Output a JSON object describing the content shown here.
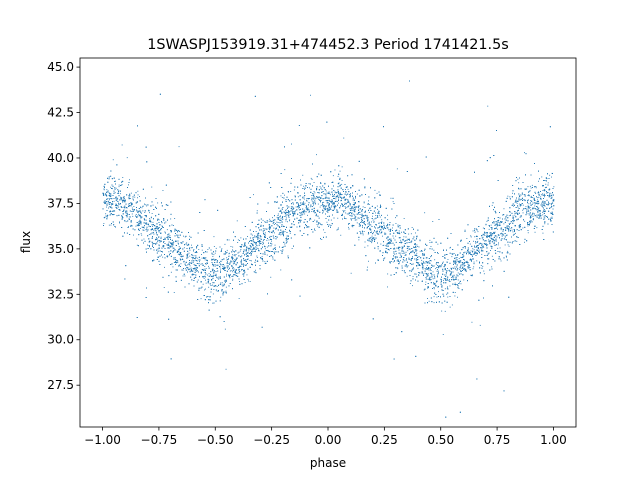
{
  "chart_data": {
    "type": "scatter",
    "title": "1SWASPJ153919.31+474452.3 Period 1741421.5s",
    "xlabel": "phase",
    "ylabel": "flux",
    "xlim": [
      -1.1,
      1.1
    ],
    "ylim": [
      25.2,
      45.5
    ],
    "xticks": [
      -1.0,
      -0.75,
      -0.5,
      -0.25,
      0.0,
      0.25,
      0.5,
      0.75,
      1.0
    ],
    "xtick_labels": [
      "−1.00",
      "−0.75",
      "−0.50",
      "−0.25",
      "0.00",
      "0.25",
      "0.50",
      "0.75",
      "1.00"
    ],
    "yticks": [
      27.5,
      30.0,
      32.5,
      35.0,
      37.5,
      40.0,
      42.5,
      45.0
    ],
    "ytick_labels": [
      "27.5",
      "30.0",
      "32.5",
      "35.0",
      "37.5",
      "40.0",
      "42.5",
      "45.0"
    ],
    "grid": false,
    "marker_color": "#1f77b4",
    "series": [
      {
        "values_description_free": true,
        "x": [
          -1.0,
          -0.95,
          -0.9,
          -0.85,
          -0.8,
          -0.75,
          -0.7,
          -0.65,
          -0.6,
          -0.55,
          -0.5,
          -0.45,
          -0.4,
          -0.35,
          -0.3,
          -0.25,
          -0.2,
          -0.15,
          -0.1,
          -0.05,
          0.0,
          0.05,
          0.1,
          0.15,
          0.2,
          0.25,
          0.3,
          0.35,
          0.4,
          0.45,
          0.5,
          0.55,
          0.6,
          0.65,
          0.7,
          0.75,
          0.8,
          0.85,
          0.9,
          0.95,
          1.0
        ],
        "y": [
          37.6,
          37.8,
          37.3,
          36.8,
          36.2,
          35.8,
          35.3,
          34.8,
          34.4,
          33.8,
          33.6,
          33.8,
          34.3,
          34.9,
          35.4,
          35.8,
          36.6,
          37.0,
          37.3,
          37.5,
          37.6,
          37.8,
          37.3,
          36.8,
          36.2,
          35.8,
          35.3,
          34.8,
          34.4,
          33.8,
          33.6,
          33.8,
          34.3,
          34.9,
          35.4,
          35.8,
          36.6,
          37.0,
          37.3,
          37.5,
          37.6
        ],
        "spread": [
          1.2,
          1.2,
          1.2,
          1.3,
          1.4,
          1.5,
          1.5,
          1.3,
          1.2,
          1.3,
          1.4,
          1.3,
          1.2,
          1.2,
          1.3,
          1.4,
          1.5,
          1.4,
          1.3,
          1.3,
          1.2,
          1.2,
          1.2,
          1.3,
          1.4,
          1.5,
          1.5,
          1.3,
          1.2,
          1.3,
          1.4,
          1.3,
          1.2,
          1.2,
          1.3,
          1.4,
          1.5,
          1.4,
          1.3,
          1.3,
          1.2
        ]
      }
    ]
  }
}
